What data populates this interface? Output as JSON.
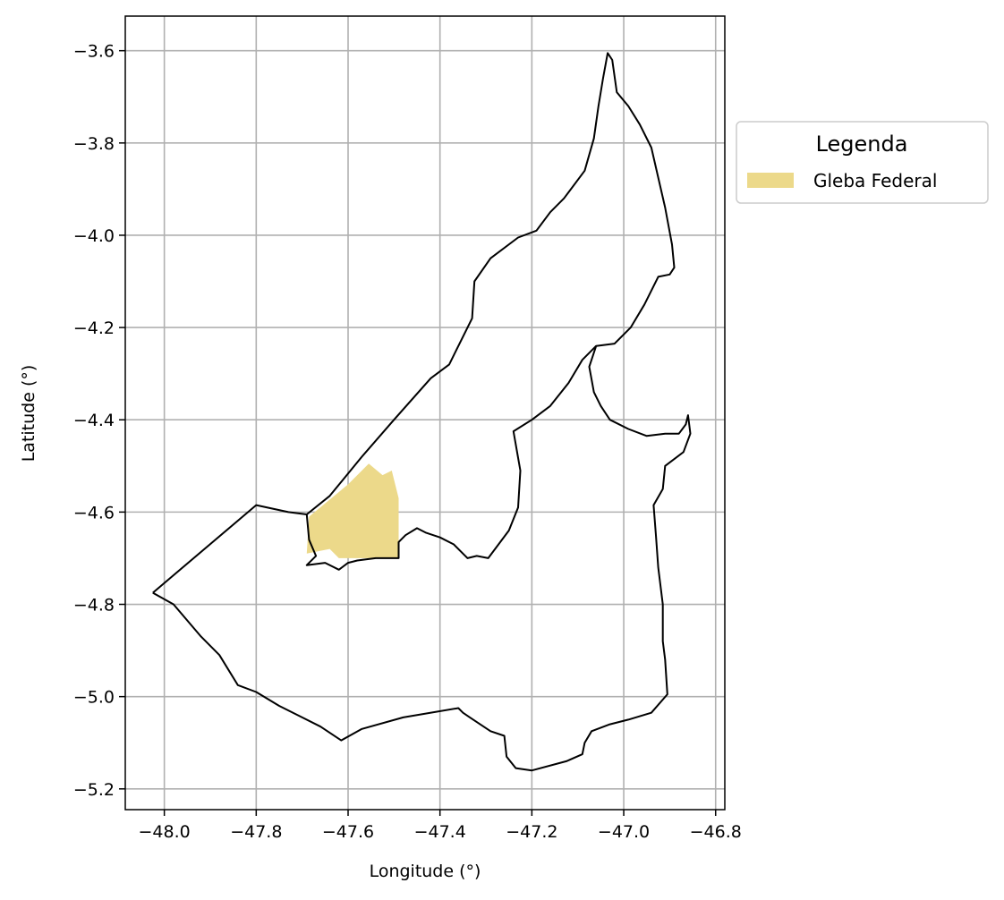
{
  "chart_data": {
    "type": "map",
    "xlabel": "Longitude (°)",
    "ylabel": "Latitude (°)",
    "xlim": [
      -48.085,
      -46.78
    ],
    "ylim": [
      -5.245,
      -3.525
    ],
    "xticks": [
      -48.0,
      -47.8,
      -47.6,
      -47.4,
      -47.2,
      -47.0,
      -46.8
    ],
    "yticks": [
      -3.6,
      -3.8,
      -4.0,
      -4.2,
      -4.4,
      -4.6,
      -4.8,
      -5.0,
      -5.2
    ],
    "xtick_labels": [
      "−48.0",
      "−47.8",
      "−47.6",
      "−47.4",
      "−47.2",
      "−47.0",
      "−46.8"
    ],
    "ytick_labels": [
      "−3.6",
      "−3.8",
      "−4.0",
      "−4.2",
      "−4.4",
      "−4.6",
      "−4.8",
      "−5.0",
      "−5.2"
    ],
    "grid": true,
    "legend": {
      "title": "Legenda",
      "placement": "outside-right-top",
      "entries": [
        {
          "label": "Gleba Federal",
          "color": "#ecd98a"
        }
      ]
    },
    "layers": [
      {
        "name": "Gleba Federal",
        "kind": "fill",
        "color": "#ecd98a",
        "polygon": [
          [
            -47.555,
            -4.495
          ],
          [
            -47.525,
            -4.52
          ],
          [
            -47.505,
            -4.51
          ],
          [
            -47.49,
            -4.57
          ],
          [
            -47.49,
            -4.7
          ],
          [
            -47.62,
            -4.7
          ],
          [
            -47.64,
            -4.68
          ],
          [
            -47.69,
            -4.69
          ],
          [
            -47.685,
            -4.61
          ],
          [
            -47.6,
            -4.54
          ]
        ]
      },
      {
        "name": "outer-boundary",
        "kind": "outline",
        "color": "#000000",
        "polygon": [
          [
            -48.025,
            -4.775
          ],
          [
            -47.8,
            -4.585
          ],
          [
            -47.73,
            -4.6
          ],
          [
            -47.69,
            -4.605
          ],
          [
            -47.64,
            -4.565
          ],
          [
            -47.57,
            -4.48
          ],
          [
            -47.5,
            -4.4
          ],
          [
            -47.42,
            -4.31
          ],
          [
            -47.38,
            -4.28
          ],
          [
            -47.33,
            -4.18
          ],
          [
            -47.325,
            -4.1
          ],
          [
            -47.29,
            -4.05
          ],
          [
            -47.23,
            -4.005
          ],
          [
            -47.19,
            -3.99
          ],
          [
            -47.16,
            -3.95
          ],
          [
            -47.13,
            -3.92
          ],
          [
            -47.085,
            -3.86
          ],
          [
            -47.065,
            -3.79
          ],
          [
            -47.055,
            -3.72
          ],
          [
            -47.045,
            -3.66
          ],
          [
            -47.035,
            -3.605
          ],
          [
            -47.025,
            -3.62
          ],
          [
            -47.015,
            -3.69
          ],
          [
            -46.99,
            -3.72
          ],
          [
            -46.965,
            -3.76
          ],
          [
            -46.94,
            -3.81
          ],
          [
            -46.925,
            -3.875
          ],
          [
            -46.91,
            -3.94
          ],
          [
            -46.895,
            -4.02
          ],
          [
            -46.89,
            -4.07
          ],
          [
            -46.9,
            -4.085
          ],
          [
            -46.925,
            -4.09
          ],
          [
            -46.955,
            -4.15
          ],
          [
            -46.985,
            -4.2
          ],
          [
            -47.02,
            -4.235
          ],
          [
            -47.06,
            -4.24
          ],
          [
            -47.075,
            -4.285
          ],
          [
            -47.065,
            -4.34
          ],
          [
            -47.05,
            -4.37
          ],
          [
            -47.03,
            -4.4
          ],
          [
            -46.99,
            -4.42
          ],
          [
            -46.95,
            -4.435
          ],
          [
            -46.91,
            -4.43
          ],
          [
            -46.88,
            -4.43
          ],
          [
            -46.865,
            -4.41
          ],
          [
            -46.86,
            -4.39
          ],
          [
            -46.855,
            -4.43
          ],
          [
            -46.87,
            -4.47
          ],
          [
            -46.91,
            -4.5
          ],
          [
            -46.915,
            -4.55
          ],
          [
            -46.935,
            -4.585
          ],
          [
            -46.93,
            -4.65
          ],
          [
            -46.925,
            -4.72
          ],
          [
            -46.915,
            -4.8
          ],
          [
            -46.915,
            -4.88
          ],
          [
            -46.91,
            -4.92
          ],
          [
            -46.905,
            -4.995
          ],
          [
            -46.94,
            -5.035
          ],
          [
            -46.99,
            -5.05
          ],
          [
            -47.03,
            -5.06
          ],
          [
            -47.07,
            -5.075
          ],
          [
            -47.085,
            -5.1
          ],
          [
            -47.09,
            -5.125
          ],
          [
            -47.125,
            -5.14
          ],
          [
            -47.2,
            -5.16
          ],
          [
            -47.235,
            -5.155
          ],
          [
            -47.255,
            -5.13
          ],
          [
            -47.26,
            -5.085
          ],
          [
            -47.29,
            -5.075
          ],
          [
            -47.335,
            -5.045
          ],
          [
            -47.35,
            -5.035
          ],
          [
            -47.36,
            -5.025
          ],
          [
            -47.48,
            -5.045
          ],
          [
            -47.57,
            -5.07
          ],
          [
            -47.615,
            -5.095
          ],
          [
            -47.66,
            -5.065
          ],
          [
            -47.7,
            -5.045
          ],
          [
            -47.75,
            -5.02
          ],
          [
            -47.8,
            -4.99
          ],
          [
            -47.84,
            -4.975
          ],
          [
            -47.88,
            -4.91
          ],
          [
            -47.92,
            -4.87
          ],
          [
            -47.98,
            -4.8
          ],
          [
            -48.025,
            -4.775
          ]
        ]
      },
      {
        "name": "inner-boundary",
        "kind": "outline",
        "color": "#000000",
        "polygon": [
          [
            -47.69,
            -4.605
          ],
          [
            -47.685,
            -4.66
          ],
          [
            -47.67,
            -4.695
          ],
          [
            -47.69,
            -4.715
          ],
          [
            -47.65,
            -4.71
          ],
          [
            -47.62,
            -4.725
          ],
          [
            -47.6,
            -4.71
          ],
          [
            -47.58,
            -4.705
          ],
          [
            -47.54,
            -4.7
          ],
          [
            -47.49,
            -4.7
          ],
          [
            -47.49,
            -4.665
          ],
          [
            -47.475,
            -4.65
          ],
          [
            -47.45,
            -4.635
          ],
          [
            -47.43,
            -4.645
          ],
          [
            -47.4,
            -4.655
          ],
          [
            -47.37,
            -4.67
          ],
          [
            -47.34,
            -4.7
          ],
          [
            -47.32,
            -4.695
          ],
          [
            -47.295,
            -4.7
          ],
          [
            -47.25,
            -4.64
          ],
          [
            -47.23,
            -4.59
          ],
          [
            -47.225,
            -4.51
          ],
          [
            -47.24,
            -4.425
          ],
          [
            -47.2,
            -4.4
          ],
          [
            -47.16,
            -4.37
          ],
          [
            -47.12,
            -4.32
          ],
          [
            -47.09,
            -4.27
          ],
          [
            -47.06,
            -4.24
          ]
        ]
      }
    ]
  }
}
